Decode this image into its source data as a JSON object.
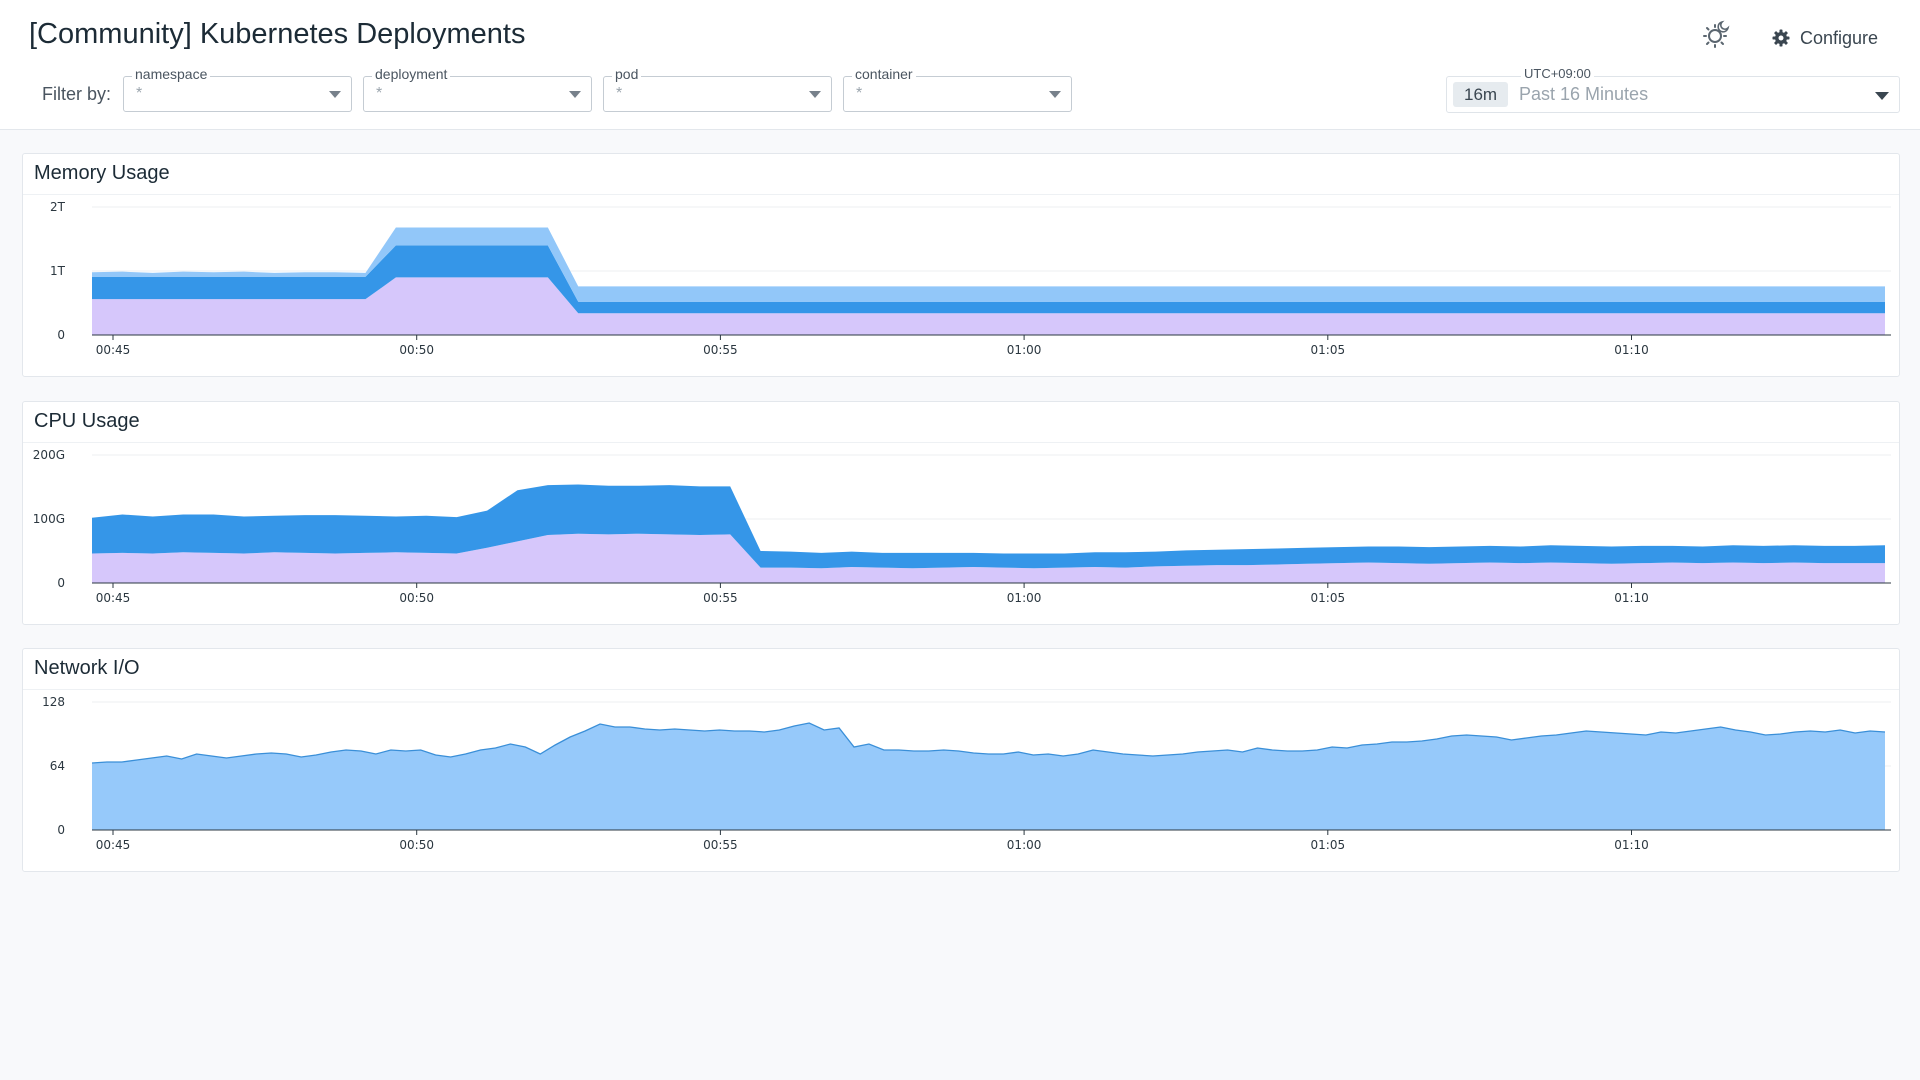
{
  "title": "[Community] Kubernetes Deployments",
  "filter_label": "Filter by:",
  "filters": [
    {
      "label": "namespace",
      "value": "*"
    },
    {
      "label": "deployment",
      "value": "*"
    },
    {
      "label": "pod",
      "value": "*"
    },
    {
      "label": "container",
      "value": "*"
    }
  ],
  "header_icons": {
    "theme_toggle": "sun-moon-icon",
    "configure": "gear-icon"
  },
  "configure_label": "Configure",
  "time": {
    "timezone": "UTC+09:00",
    "badge": "16m",
    "range": "Past 16 Minutes"
  },
  "colors": {
    "lavender": "#d6c7fb",
    "blue": "#3596e8",
    "light_blue": "#92c7f9",
    "network": "#96c9fa",
    "network_line": "#3a8fd8"
  },
  "x_ticks": [
    "00:45",
    "00:50",
    "00:55",
    "01:00",
    "01:05",
    "01:10"
  ],
  "panels": [
    {
      "title": "Memory Usage",
      "y_ticks": [
        "2T",
        "1T",
        "0"
      ]
    },
    {
      "title": "CPU Usage",
      "y_ticks": [
        "200G",
        "100G",
        "0"
      ]
    },
    {
      "title": "Network I/O",
      "y_ticks": [
        "128",
        "64",
        "0"
      ]
    }
  ],
  "chart_data": [
    {
      "type": "area",
      "title": "Memory Usage",
      "stacked": true,
      "x_range": [
        "00:44:40",
        "01:14:10"
      ],
      "ylim": [
        0,
        2
      ],
      "y_unit": "T",
      "series": [
        {
          "color": "#d6c7fb",
          "values_t": [
            0.56,
            0.56,
            0.56,
            0.56,
            0.56,
            0.56,
            0.56,
            0.56,
            0.56,
            0.56,
            0.9,
            0.9,
            0.9,
            0.9,
            0.9,
            0.9,
            0.34,
            0.34,
            0.34,
            0.34,
            0.34,
            0.34,
            0.34,
            0.34,
            0.34,
            0.34,
            0.34,
            0.34,
            0.34,
            0.34,
            0.34,
            0.34,
            0.34,
            0.34,
            0.34,
            0.34,
            0.34,
            0.34,
            0.34,
            0.34,
            0.34,
            0.34,
            0.34,
            0.34,
            0.34,
            0.34,
            0.34,
            0.34,
            0.34,
            0.34,
            0.34,
            0.34,
            0.34,
            0.34,
            0.34,
            0.34,
            0.34,
            0.34,
            0.34,
            0.34
          ]
        },
        {
          "color": "#3596e8",
          "values_t": [
            0.35,
            0.35,
            0.35,
            0.35,
            0.35,
            0.35,
            0.35,
            0.35,
            0.35,
            0.35,
            0.5,
            0.5,
            0.5,
            0.5,
            0.5,
            0.5,
            0.18,
            0.18,
            0.18,
            0.18,
            0.18,
            0.18,
            0.18,
            0.18,
            0.18,
            0.18,
            0.18,
            0.18,
            0.18,
            0.18,
            0.18,
            0.18,
            0.18,
            0.18,
            0.18,
            0.18,
            0.18,
            0.18,
            0.18,
            0.18,
            0.18,
            0.18,
            0.18,
            0.18,
            0.18,
            0.18,
            0.18,
            0.18,
            0.18,
            0.18,
            0.18,
            0.18,
            0.18,
            0.18,
            0.18,
            0.18,
            0.18,
            0.18,
            0.18,
            0.18
          ]
        },
        {
          "color": "#92c7f9",
          "values_t": [
            0.07,
            0.08,
            0.06,
            0.08,
            0.07,
            0.08,
            0.06,
            0.07,
            0.07,
            0.06,
            0.28,
            0.28,
            0.28,
            0.28,
            0.28,
            0.28,
            0.24,
            0.24,
            0.24,
            0.24,
            0.24,
            0.24,
            0.24,
            0.24,
            0.24,
            0.24,
            0.24,
            0.24,
            0.24,
            0.24,
            0.24,
            0.24,
            0.24,
            0.24,
            0.24,
            0.24,
            0.24,
            0.24,
            0.24,
            0.24,
            0.24,
            0.24,
            0.24,
            0.24,
            0.24,
            0.24,
            0.24,
            0.24,
            0.24,
            0.24,
            0.24,
            0.24,
            0.24,
            0.24,
            0.24,
            0.24,
            0.24,
            0.24,
            0.24,
            0.24
          ]
        }
      ]
    },
    {
      "type": "area",
      "title": "CPU Usage",
      "stacked": true,
      "x_range": [
        "00:44:40",
        "01:14:10"
      ],
      "ylim": [
        0,
        200
      ],
      "y_unit": "G",
      "series": [
        {
          "color": "#d6c7fb",
          "values_g": [
            46,
            47,
            46,
            48,
            47,
            46,
            48,
            47,
            46,
            47,
            48,
            47,
            46,
            55,
            65,
            75,
            77,
            76,
            77,
            76,
            75,
            76,
            24,
            24,
            23,
            25,
            24,
            23,
            24,
            25,
            24,
            23,
            24,
            25,
            24,
            26,
            27,
            28,
            28,
            29,
            30,
            31,
            32,
            31,
            30,
            31,
            32,
            31,
            32,
            31,
            30,
            31,
            32,
            31,
            32,
            31,
            32,
            31,
            31,
            31
          ]
        },
        {
          "color": "#3596e8",
          "values_g": [
            56,
            60,
            58,
            59,
            60,
            58,
            57,
            59,
            60,
            58,
            56,
            58,
            57,
            58,
            80,
            78,
            77,
            76,
            75,
            77,
            76,
            75,
            26,
            25,
            24,
            24,
            23,
            24,
            23,
            22,
            22,
            23,
            22,
            23,
            24,
            23,
            24,
            24,
            25,
            25,
            25,
            25,
            25,
            26,
            26,
            26,
            26,
            26,
            27,
            27,
            27,
            27,
            26,
            26,
            27,
            27,
            27,
            27,
            27,
            28
          ]
        }
      ]
    },
    {
      "type": "area",
      "title": "Network I/O",
      "x_range": [
        "00:44:40",
        "01:14:10"
      ],
      "ylim": [
        0,
        128
      ],
      "series": [
        {
          "color": "#96c9fa",
          "values": [
            67,
            68,
            68,
            70,
            72,
            74,
            71,
            76,
            74,
            72,
            74,
            76,
            77,
            76,
            73,
            75,
            78,
            80,
            79,
            76,
            80,
            79,
            80,
            75,
            73,
            76,
            80,
            82,
            86,
            83,
            76,
            85,
            93,
            99,
            106,
            103,
            103,
            101,
            100,
            101,
            100,
            99,
            100,
            99,
            99,
            98,
            100,
            104,
            107,
            100,
            102,
            83,
            86,
            80,
            80,
            79,
            79,
            80,
            79,
            77,
            76,
            76,
            78,
            75,
            76,
            74,
            76,
            80,
            78,
            76,
            75,
            74,
            75,
            76,
            78,
            79,
            80,
            78,
            82,
            80,
            79,
            79,
            80,
            83,
            82,
            85,
            86,
            88,
            88,
            89,
            91,
            94,
            95,
            94,
            93,
            90,
            92,
            94,
            95,
            97,
            99,
            98,
            97,
            96,
            95,
            98,
            97,
            99,
            101,
            103,
            100,
            98,
            95,
            96,
            98,
            99,
            98,
            100,
            97,
            99,
            98
          ]
        }
      ]
    }
  ]
}
